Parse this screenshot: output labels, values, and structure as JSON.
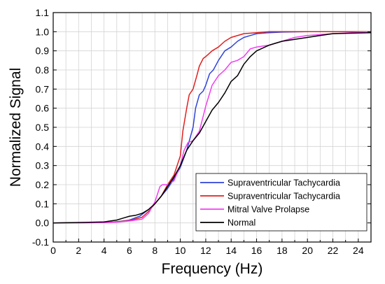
{
  "chart_data": {
    "type": "line",
    "xlabel": "Frequency (Hz)",
    "ylabel": "Normalized Signal",
    "xlim": [
      0,
      25
    ],
    "ylim": [
      -0.1,
      1.1
    ],
    "x_ticks": [
      0,
      2,
      4,
      6,
      8,
      10,
      12,
      14,
      16,
      18,
      20,
      22,
      24
    ],
    "y_ticks": [
      -0.1,
      0.0,
      0.1,
      0.2,
      0.3,
      0.4,
      0.5,
      0.6,
      0.7,
      0.8,
      0.9,
      1.0,
      1.1
    ],
    "y_tick_labels": [
      "-0.1",
      "0.0",
      "0.1",
      "0.2",
      "0.3",
      "0.4",
      "0.5",
      "0.6",
      "0.7",
      "0.8",
      "0.9",
      "1.0",
      "1.1"
    ],
    "grid": true,
    "legend_position": "bottom-right",
    "series": [
      {
        "name": "Supraventricular Tachycardia",
        "color": "#2f43d9",
        "x": [
          0,
          4,
          5,
          6,
          6.8,
          7.5,
          8,
          8.5,
          9,
          9.5,
          10,
          10.5,
          11,
          11.2,
          11.5,
          11.8,
          12,
          12.3,
          12.6,
          13,
          13.5,
          14,
          14.5,
          15,
          15.5,
          16,
          17,
          18,
          20,
          25
        ],
        "y": [
          0,
          0.002,
          0.006,
          0.015,
          0.035,
          0.07,
          0.1,
          0.14,
          0.18,
          0.23,
          0.29,
          0.38,
          0.5,
          0.6,
          0.67,
          0.69,
          0.72,
          0.78,
          0.8,
          0.85,
          0.9,
          0.92,
          0.95,
          0.97,
          0.98,
          0.99,
          0.995,
          0.998,
          1.0,
          1.0
        ]
      },
      {
        "name": "Supraventricular Tachycardia",
        "color": "#e0201f",
        "x": [
          0,
          4,
          5,
          6,
          7,
          7.5,
          8,
          8.5,
          9,
          9.5,
          10,
          10.2,
          10.5,
          10.7,
          11,
          11.3,
          11.5,
          11.8,
          12,
          12.5,
          13,
          13.5,
          14,
          15,
          16,
          17,
          18,
          25
        ],
        "y": [
          0,
          0.002,
          0.006,
          0.012,
          0.03,
          0.06,
          0.1,
          0.14,
          0.2,
          0.25,
          0.35,
          0.48,
          0.6,
          0.67,
          0.7,
          0.77,
          0.82,
          0.86,
          0.87,
          0.9,
          0.92,
          0.95,
          0.97,
          0.99,
          0.995,
          1.0,
          1.0,
          1.0
        ]
      },
      {
        "name": "Mitral Valve Prolapse",
        "color": "#f23ef2",
        "x": [
          0,
          4,
          5,
          6,
          7,
          7.5,
          8,
          8.4,
          8.6,
          9,
          9.5,
          10,
          10.3,
          10.6,
          11,
          11.5,
          12,
          12.5,
          13,
          13.5,
          14,
          14.5,
          15,
          15.5,
          16,
          17,
          18,
          19,
          20,
          22,
          25
        ],
        "y": [
          0,
          0.001,
          0.004,
          0.01,
          0.02,
          0.05,
          0.11,
          0.19,
          0.2,
          0.2,
          0.22,
          0.3,
          0.38,
          0.42,
          0.43,
          0.48,
          0.61,
          0.72,
          0.77,
          0.8,
          0.84,
          0.85,
          0.87,
          0.91,
          0.92,
          0.93,
          0.95,
          0.97,
          0.98,
          0.99,
          1.0
        ]
      },
      {
        "name": "Normal",
        "color": "#000000",
        "x": [
          0,
          4,
          4.5,
          5,
          5.5,
          6,
          6.5,
          7,
          7.5,
          8,
          8.5,
          9,
          9.5,
          10,
          10.5,
          11,
          11.5,
          12,
          12.5,
          13,
          13.5,
          14,
          14.5,
          15,
          15.5,
          16,
          17,
          18,
          19,
          20,
          21,
          22,
          25
        ],
        "y": [
          0,
          0.005,
          0.01,
          0.015,
          0.025,
          0.035,
          0.04,
          0.05,
          0.07,
          0.1,
          0.14,
          0.19,
          0.24,
          0.3,
          0.38,
          0.43,
          0.47,
          0.53,
          0.59,
          0.63,
          0.68,
          0.74,
          0.77,
          0.83,
          0.87,
          0.9,
          0.93,
          0.95,
          0.96,
          0.97,
          0.98,
          0.99,
          0.995
        ]
      }
    ]
  }
}
